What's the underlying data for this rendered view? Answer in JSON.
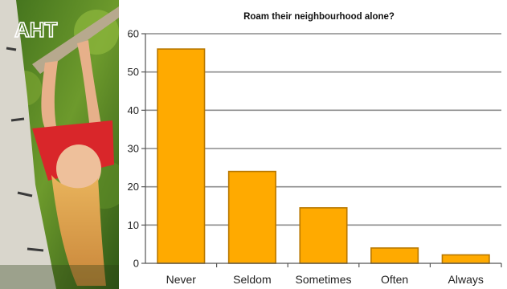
{
  "logo": {
    "text": "AHT"
  },
  "colors": {
    "bar_fill": "#FFAA00",
    "bar_stroke": "#B87800",
    "grid": "#8c8c8c",
    "axis": "#555555"
  },
  "chart_data": {
    "type": "bar",
    "title": "Roam their neighbourhood alone?",
    "categories": [
      "Never",
      "Seldom",
      "Sometimes",
      "Often",
      "Always"
    ],
    "values": [
      56,
      24,
      14.5,
      4,
      2.2
    ],
    "ylim": [
      0,
      60
    ],
    "yticks": [
      0,
      10,
      20,
      30,
      40,
      50,
      60
    ],
    "grid": true,
    "legend": "none"
  }
}
